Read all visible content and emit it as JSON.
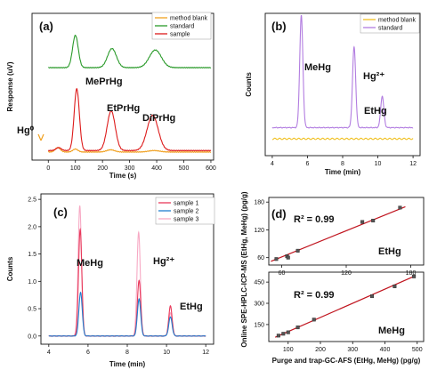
{
  "chart_data": [
    {
      "panel": "(a)",
      "type": "line",
      "xlabel": "Time (s)",
      "ylabel": "Response (uV)",
      "xlim": [
        -60,
        610
      ],
      "xticks": [
        0,
        100,
        200,
        300,
        400,
        500,
        600
      ],
      "legend": [
        "method blank",
        "standard",
        "sample"
      ],
      "legend_position": "top-right",
      "series": [
        {
          "name": "method blank",
          "color": "#f0a020",
          "peaks": [
            {
              "t": 35,
              "h": 0.03
            },
            {
              "t": 100,
              "h": 0.02
            },
            {
              "t": 230,
              "h": 0.015
            },
            {
              "t": 390,
              "h": 0.01
            }
          ]
        },
        {
          "name": "standard",
          "color": "#2a9a2a",
          "peaks": [
            {
              "t": 100,
              "h": 0.22
            },
            {
              "t": 235,
              "h": 0.13
            },
            {
              "t": 395,
              "h": 0.12
            }
          ]
        },
        {
          "name": "sample",
          "color": "#dd1a1a",
          "peaks": [
            {
              "t": 38,
              "h": 0.02
            },
            {
              "t": 105,
              "h": 0.42
            },
            {
              "t": 232,
              "h": 0.27
            },
            {
              "t": 385,
              "h": 0.24
            }
          ]
        }
      ],
      "annotations": [
        "MePrHg",
        "EtPrHg",
        "DiPrHg",
        "Hg⁰"
      ]
    },
    {
      "panel": "(b)",
      "type": "line",
      "xlabel": "Time (min)",
      "ylabel": "Counts",
      "xlim": [
        3.6,
        12.4
      ],
      "xticks": [
        4,
        6,
        8,
        10,
        12
      ],
      "legend": [
        "method blank",
        "standard"
      ],
      "legend_position": "top-right",
      "series": [
        {
          "name": "method blank",
          "color": "#f0c020",
          "peaks": []
        },
        {
          "name": "standard",
          "color": "#b27de0",
          "peaks": [
            {
              "t": 5.65,
              "h": 1.0
            },
            {
              "t": 8.65,
              "h": 0.72
            },
            {
              "t": 10.25,
              "h": 0.28
            }
          ]
        }
      ],
      "annotations": [
        "MeHg",
        "Hg²⁺",
        "EtHg"
      ]
    },
    {
      "panel": "(c)",
      "type": "line",
      "xlabel": "Time (min)",
      "ylabel": "Counts",
      "xlim": [
        3.6,
        12.4
      ],
      "ylim": [
        -0.15,
        2.6
      ],
      "xticks": [
        4,
        6,
        8,
        10,
        12
      ],
      "yticks": [
        0.0,
        0.5,
        1.0,
        1.5,
        2.0,
        2.5
      ],
      "legend": [
        "sample 1",
        "sample 2",
        "sample 3"
      ],
      "legend_position": "top-right",
      "series": [
        {
          "name": "sample 1",
          "color": "#e8395a",
          "peaks": [
            {
              "t": 5.6,
              "h": 1.95
            },
            {
              "t": 8.6,
              "h": 1.02
            },
            {
              "t": 10.2,
              "h": 0.55
            }
          ]
        },
        {
          "name": "sample 2",
          "color": "#1f7fd0",
          "peaks": [
            {
              "t": 5.62,
              "h": 0.8
            },
            {
              "t": 8.6,
              "h": 0.68
            },
            {
              "t": 10.2,
              "h": 0.35
            }
          ]
        },
        {
          "name": "sample 3",
          "color": "#f7a9c4",
          "peaks": [
            {
              "t": 5.58,
              "h": 2.38
            },
            {
              "t": 8.58,
              "h": 1.9
            },
            {
              "t": 10.2,
              "h": 0.42
            }
          ]
        }
      ],
      "annotations": [
        "MeHg",
        "Hg²⁺",
        "EtHg"
      ]
    },
    {
      "panel": "(d)",
      "type": "scatter",
      "xlabel": "Purge and trap-GC-AFS (EtHg, MeHg) (pg/g)",
      "ylabel": "Online SPE-HPLC-ICP-MS (EtHg, MeHg) (pg/g)",
      "subplots": [
        {
          "label": "EtHg",
          "r2": "R² = 0.99",
          "xlim": [
            48,
            192
          ],
          "ylim": [
            44,
            190
          ],
          "xticks": [
            60,
            120,
            180
          ],
          "yticks": [
            60,
            120,
            180
          ],
          "x": [
            55,
            65,
            66,
            75,
            135,
            145,
            170
          ],
          "y": [
            57,
            63,
            60,
            75,
            137,
            140,
            168
          ],
          "fit": {
            "x": [
              50,
              175
            ],
            "y": [
              52,
              170
            ]
          }
        },
        {
          "label": "MeHg",
          "r2": "R² = 0.99",
          "xlim": [
            40,
            520
          ],
          "ylim": [
            30,
            520
          ],
          "xticks": [
            100,
            200,
            300,
            400,
            500
          ],
          "yticks": [
            150,
            300,
            450
          ],
          "x": [
            70,
            85,
            100,
            130,
            180,
            360,
            430,
            490
          ],
          "y": [
            72,
            85,
            95,
            130,
            185,
            350,
            420,
            490
          ],
          "fit": {
            "x": [
              60,
              495
            ],
            "y": [
              60,
              495
            ]
          }
        }
      ]
    }
  ]
}
